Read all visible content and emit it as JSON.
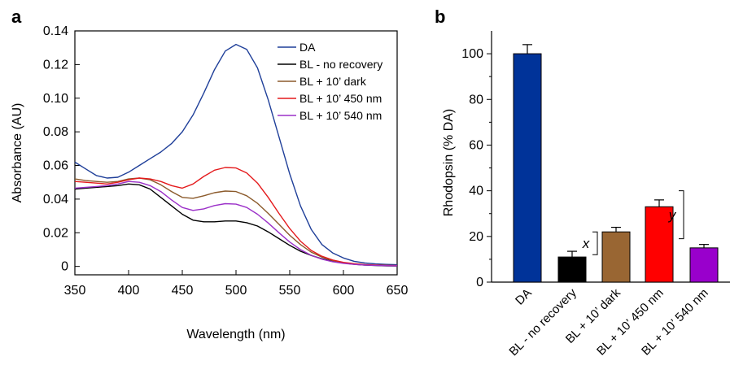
{
  "panels": {
    "a_label": "a",
    "b_label": "b"
  },
  "chart_data": [
    {
      "type": "line",
      "panel": "a",
      "xlabel": "Wavelength (nm)",
      "ylabel": "Absorbance (AU)",
      "xlim": [
        350,
        650
      ],
      "ylim": [
        -0.005,
        0.14
      ],
      "xticks": [
        350,
        400,
        450,
        500,
        550,
        600,
        650
      ],
      "yticks": [
        0,
        0.02,
        0.04,
        0.06,
        0.08,
        0.1,
        0.12,
        0.14
      ],
      "ytick_labels": [
        "0",
        "0.02",
        "0.04",
        "0.06",
        "0.08",
        "0.10",
        "0.12",
        "0.14"
      ],
      "grid": false,
      "legend_position": "top-right",
      "series": [
        {
          "name": "DA",
          "color": "#1f3f99",
          "points": [
            [
              350,
              0.062
            ],
            [
              360,
              0.058
            ],
            [
              370,
              0.054
            ],
            [
              380,
              0.0525
            ],
            [
              390,
              0.053
            ],
            [
              400,
              0.056
            ],
            [
              410,
              0.06
            ],
            [
              420,
              0.064
            ],
            [
              430,
              0.068
            ],
            [
              440,
              0.073
            ],
            [
              450,
              0.08
            ],
            [
              460,
              0.09
            ],
            [
              470,
              0.103
            ],
            [
              480,
              0.117
            ],
            [
              490,
              0.128
            ],
            [
              500,
              0.132
            ],
            [
              510,
              0.129
            ],
            [
              520,
              0.118
            ],
            [
              530,
              0.099
            ],
            [
              540,
              0.077
            ],
            [
              550,
              0.055
            ],
            [
              560,
              0.036
            ],
            [
              570,
              0.022
            ],
            [
              580,
              0.013
            ],
            [
              590,
              0.008
            ],
            [
              600,
              0.005
            ],
            [
              610,
              0.003
            ],
            [
              620,
              0.002
            ],
            [
              630,
              0.0015
            ],
            [
              640,
              0.0012
            ],
            [
              650,
              0.001
            ]
          ]
        },
        {
          "name": "BL - no recovery",
          "color": "#000000",
          "points": [
            [
              350,
              0.046
            ],
            [
              360,
              0.0465
            ],
            [
              370,
              0.047
            ],
            [
              380,
              0.0475
            ],
            [
              390,
              0.048
            ],
            [
              400,
              0.049
            ],
            [
              410,
              0.0485
            ],
            [
              420,
              0.046
            ],
            [
              430,
              0.041
            ],
            [
              440,
              0.036
            ],
            [
              450,
              0.031
            ],
            [
              460,
              0.0275
            ],
            [
              470,
              0.0265
            ],
            [
              480,
              0.0265
            ],
            [
              490,
              0.027
            ],
            [
              500,
              0.027
            ],
            [
              510,
              0.026
            ],
            [
              520,
              0.024
            ],
            [
              530,
              0.0205
            ],
            [
              540,
              0.0165
            ],
            [
              550,
              0.0125
            ],
            [
              560,
              0.009
            ],
            [
              570,
              0.0065
            ],
            [
              580,
              0.0045
            ],
            [
              590,
              0.003
            ],
            [
              600,
              0.002
            ],
            [
              610,
              0.0013
            ],
            [
              620,
              0.0008
            ],
            [
              630,
              0.0005
            ],
            [
              640,
              0.0003
            ],
            [
              650,
              0.0002
            ]
          ]
        },
        {
          "name": "BL + 10’ dark",
          "color": "#8b5a2b",
          "points": [
            [
              350,
              0.052
            ],
            [
              360,
              0.051
            ],
            [
              370,
              0.0505
            ],
            [
              380,
              0.05
            ],
            [
              390,
              0.0505
            ],
            [
              400,
              0.052
            ],
            [
              410,
              0.0525
            ],
            [
              420,
              0.0515
            ],
            [
              430,
              0.0485
            ],
            [
              440,
              0.0445
            ],
            [
              450,
              0.041
            ],
            [
              460,
              0.0405
            ],
            [
              470,
              0.042
            ],
            [
              480,
              0.0438
            ],
            [
              490,
              0.0448
            ],
            [
              500,
              0.0445
            ],
            [
              510,
              0.042
            ],
            [
              520,
              0.0375
            ],
            [
              530,
              0.0315
            ],
            [
              540,
              0.025
            ],
            [
              550,
              0.0185
            ],
            [
              560,
              0.013
            ],
            [
              570,
              0.0085
            ],
            [
              580,
              0.0055
            ],
            [
              590,
              0.0035
            ],
            [
              600,
              0.0022
            ],
            [
              610,
              0.0015
            ],
            [
              620,
              0.001
            ],
            [
              630,
              0.0007
            ],
            [
              640,
              0.0005
            ],
            [
              650,
              0.0004
            ]
          ]
        },
        {
          "name": "BL + 10’ 450 nm",
          "color": "#e41a1c",
          "points": [
            [
              350,
              0.0505
            ],
            [
              360,
              0.05
            ],
            [
              370,
              0.0495
            ],
            [
              380,
              0.049
            ],
            [
              390,
              0.05
            ],
            [
              400,
              0.0515
            ],
            [
              410,
              0.0525
            ],
            [
              420,
              0.052
            ],
            [
              430,
              0.0505
            ],
            [
              440,
              0.048
            ],
            [
              450,
              0.0465
            ],
            [
              460,
              0.049
            ],
            [
              470,
              0.0535
            ],
            [
              480,
              0.0572
            ],
            [
              490,
              0.0588
            ],
            [
              500,
              0.0585
            ],
            [
              510,
              0.0555
            ],
            [
              520,
              0.0495
            ],
            [
              530,
              0.041
            ],
            [
              540,
              0.0315
            ],
            [
              550,
              0.0225
            ],
            [
              560,
              0.015
            ],
            [
              570,
              0.0095
            ],
            [
              580,
              0.006
            ],
            [
              590,
              0.0038
            ],
            [
              600,
              0.0024
            ],
            [
              610,
              0.0016
            ],
            [
              620,
              0.0011
            ],
            [
              630,
              0.0008
            ],
            [
              640,
              0.0006
            ],
            [
              650,
              0.0005
            ]
          ]
        },
        {
          "name": "BL + 10’ 540 nm",
          "color": "#9b30c8",
          "points": [
            [
              350,
              0.0465
            ],
            [
              360,
              0.047
            ],
            [
              370,
              0.0475
            ],
            [
              380,
              0.048
            ],
            [
              390,
              0.049
            ],
            [
              400,
              0.0505
            ],
            [
              410,
              0.05
            ],
            [
              420,
              0.048
            ],
            [
              430,
              0.0445
            ],
            [
              440,
              0.0395
            ],
            [
              450,
              0.035
            ],
            [
              460,
              0.0333
            ],
            [
              470,
              0.0342
            ],
            [
              480,
              0.0362
            ],
            [
              490,
              0.0373
            ],
            [
              500,
              0.037
            ],
            [
              510,
              0.035
            ],
            [
              520,
              0.031
            ],
            [
              530,
              0.0258
            ],
            [
              540,
              0.02
            ],
            [
              550,
              0.0145
            ],
            [
              560,
              0.01
            ],
            [
              570,
              0.0066
            ],
            [
              580,
              0.0043
            ],
            [
              590,
              0.0028
            ],
            [
              600,
              0.0018
            ],
            [
              610,
              0.0012
            ],
            [
              620,
              0.0008
            ],
            [
              630,
              0.0006
            ],
            [
              640,
              0.0004
            ],
            [
              650,
              0.0003
            ]
          ]
        }
      ]
    },
    {
      "type": "bar",
      "panel": "b",
      "ylabel": "Rhodopsin (% DA)",
      "xlabel": "",
      "ylim": [
        0,
        110
      ],
      "yticks": [
        0,
        20,
        40,
        60,
        80,
        100
      ],
      "grid": false,
      "categories": [
        "DA",
        "BL - no recovery",
        "BL + 10’ dark",
        "BL + 10’ 450 nm",
        "BL + 10’ 540 nm"
      ],
      "values": [
        100,
        11,
        22,
        33,
        15
      ],
      "errors": [
        4,
        2.5,
        2,
        3,
        1.5
      ],
      "colors": [
        "#003399",
        "#000000",
        "#996633",
        "#ff0000",
        "#9900cc"
      ],
      "annotations": [
        {
          "text": "x",
          "between": [
            "BL - no recovery",
            "BL + 10’ dark"
          ]
        },
        {
          "text": "y",
          "between": [
            "BL + 10’ 450 nm",
            "BL + 10’ 540 nm"
          ]
        }
      ]
    }
  ]
}
